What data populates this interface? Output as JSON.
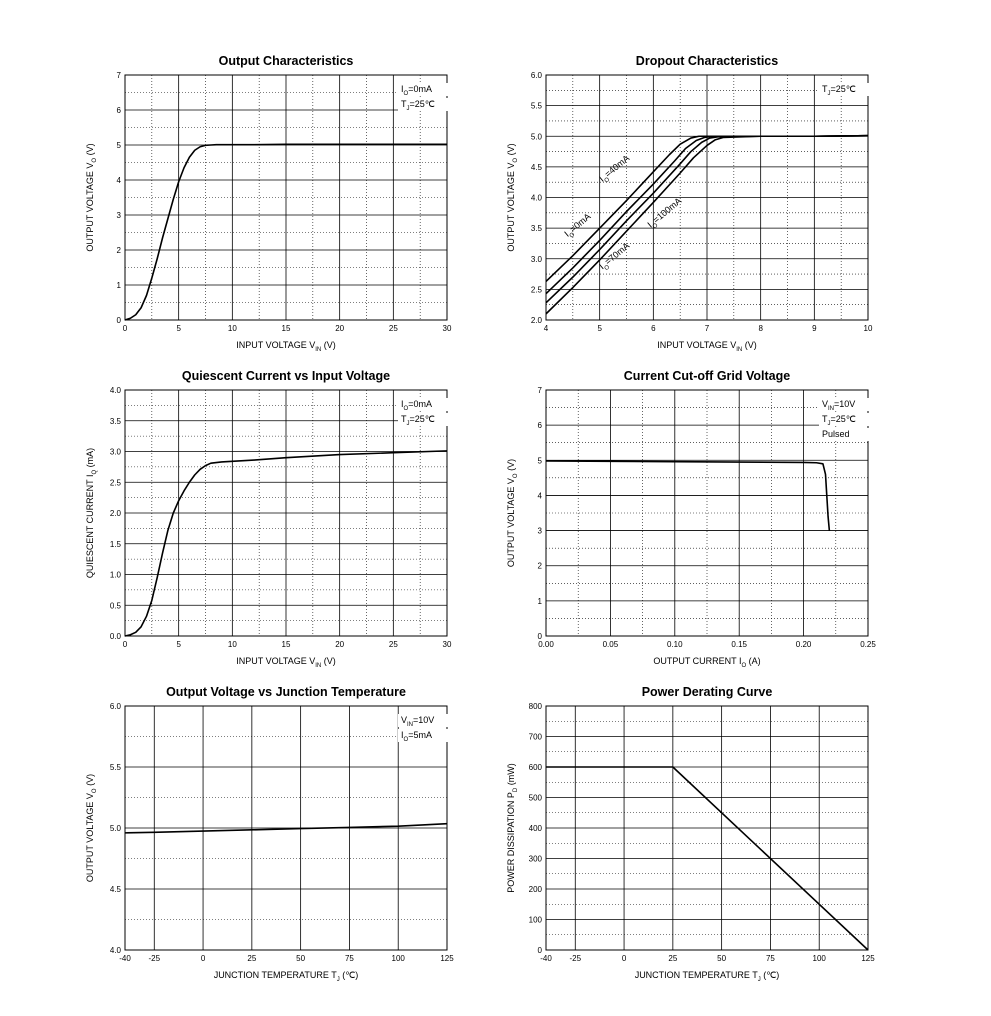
{
  "chart_data": [
    {
      "type": "line",
      "title": "Output  Characteristics",
      "xlabel": {
        "main": "INPUT VOLTAGE   V",
        "sub": "IN",
        "unit": "(V)"
      },
      "ylabel": {
        "main": "OUTPUT VOLTAGE   V",
        "sub": "O",
        "unit": "(V)"
      },
      "xlim": [
        0,
        30
      ],
      "ylim": [
        0,
        7
      ],
      "xticks": [
        0,
        5,
        10,
        15,
        20,
        25,
        30
      ],
      "yticks": [
        0,
        1,
        2,
        3,
        4,
        5,
        6,
        7
      ],
      "ytick_labels": [
        "0",
        "1",
        "2",
        "3",
        "4",
        "5",
        "6",
        "7"
      ],
      "annotations": [
        {
          "main": "I",
          "sub": "O",
          "rest": "=0mA"
        },
        {
          "main": "T",
          "sub": "J",
          "rest": "=25℃"
        }
      ],
      "series": [
        {
          "x": [
            0,
            0.5,
            1,
            1.5,
            2,
            2.5,
            3,
            3.5,
            4,
            4.5,
            5,
            5.5,
            6,
            6.5,
            7,
            7.5,
            8,
            8.5,
            9,
            10,
            12,
            15,
            20,
            25,
            30
          ],
          "y": [
            0,
            0.05,
            0.15,
            0.35,
            0.7,
            1.2,
            1.75,
            2.35,
            2.9,
            3.45,
            3.95,
            4.35,
            4.65,
            4.85,
            4.95,
            4.99,
            5.0,
            5.01,
            5.01,
            5.01,
            5.01,
            5.02,
            5.02,
            5.02,
            5.02
          ]
        }
      ]
    },
    {
      "type": "line",
      "title": "Dropout Characteristics",
      "xlabel": {
        "main": "INPUT VOLTAGE   V",
        "sub": "IN",
        "unit": "(V)"
      },
      "ylabel": {
        "main": "OUTPUT VOLTAGE   V",
        "sub": "O",
        "unit": "(V)"
      },
      "xlim": [
        4,
        10
      ],
      "ylim": [
        2.0,
        6.0
      ],
      "xticks": [
        4,
        5,
        6,
        7,
        8,
        9,
        10
      ],
      "yticks": [
        2.0,
        2.5,
        3.0,
        3.5,
        4.0,
        4.5,
        5.0,
        5.5,
        6.0
      ],
      "ytick_labels": [
        "2.0",
        "2.5",
        "3.0",
        "3.5",
        "4.0",
        "4.5",
        "5.0",
        "5.5",
        "6.0"
      ],
      "annotations": [
        {
          "main": "T",
          "sub": "J",
          "rest": "=25℃"
        }
      ],
      "series": [
        {
          "name": "I=0mA",
          "x": [
            4,
            4.5,
            5,
            5.5,
            6,
            6.3,
            6.5,
            6.7,
            6.85,
            7,
            8,
            9,
            10
          ],
          "y": [
            2.63,
            3.05,
            3.5,
            3.95,
            4.42,
            4.7,
            4.87,
            4.97,
            5.0,
            5.0,
            5.0,
            5.0,
            5.01
          ]
        },
        {
          "name": "I=40mA",
          "x": [
            4,
            4.5,
            5,
            5.5,
            6,
            6.4,
            6.6,
            6.8,
            6.95,
            7.1,
            8,
            9,
            10
          ],
          "y": [
            2.43,
            2.85,
            3.3,
            3.77,
            4.22,
            4.6,
            4.8,
            4.93,
            4.98,
            5.0,
            5.0,
            5.0,
            5.01
          ]
        },
        {
          "name": "I=70mA",
          "x": [
            4,
            4.5,
            5,
            5.5,
            6,
            6.5,
            6.7,
            6.9,
            7.05,
            7.2,
            8,
            9,
            10
          ],
          "y": [
            2.28,
            2.7,
            3.15,
            3.62,
            4.07,
            4.55,
            4.75,
            4.9,
            4.97,
            4.99,
            5.0,
            5.0,
            5.01
          ]
        },
        {
          "name": "I=100mA",
          "x": [
            4,
            4.5,
            5,
            5.5,
            6,
            6.5,
            6.75,
            7,
            7.15,
            7.3,
            8,
            9,
            10
          ],
          "y": [
            2.1,
            2.53,
            2.98,
            3.45,
            3.92,
            4.4,
            4.65,
            4.85,
            4.94,
            4.98,
            5.0,
            5.0,
            5.01
          ]
        }
      ],
      "curve_labels": [
        {
          "main": "I",
          "sub": "O",
          "rest": "=0mA"
        },
        {
          "main": "I",
          "sub": "O",
          "rest": "=40mA"
        },
        {
          "main": "I",
          "sub": "O",
          "rest": "=70mA"
        },
        {
          "main": "I",
          "sub": "O",
          "rest": "=100mA"
        }
      ]
    },
    {
      "type": "line",
      "title": "Quiescent Current vs Input Voltage",
      "xlabel": {
        "main": "INPUT VOLTAGE   V",
        "sub": "IN",
        "unit": "(V)"
      },
      "ylabel": {
        "main": "QUIESCENT CURRENT   I",
        "sub": "Q",
        "unit": "(mA)"
      },
      "xlim": [
        0,
        30
      ],
      "ylim": [
        0,
        4.0
      ],
      "xticks": [
        0,
        5,
        10,
        15,
        20,
        25,
        30
      ],
      "yticks": [
        0,
        0.5,
        1.0,
        1.5,
        2.0,
        2.5,
        3.0,
        3.5,
        4.0
      ],
      "ytick_labels": [
        "0.0",
        "0.5",
        "1.0",
        "1.5",
        "2.0",
        "2.5",
        "3.0",
        "3.5",
        "4.0"
      ],
      "annotations": [
        {
          "main": "I",
          "sub": "O",
          "rest": "=0mA"
        },
        {
          "main": "T",
          "sub": "J",
          "rest": "=25℃"
        }
      ],
      "series": [
        {
          "x": [
            0,
            0.5,
            1,
            1.5,
            2,
            2.5,
            3,
            3.5,
            4,
            4.5,
            5,
            5.5,
            6,
            6.5,
            7,
            7.5,
            8,
            9,
            10,
            12,
            15,
            20,
            25,
            30
          ],
          "y": [
            0,
            0.02,
            0.06,
            0.15,
            0.32,
            0.58,
            0.95,
            1.35,
            1.72,
            2.0,
            2.2,
            2.36,
            2.5,
            2.62,
            2.71,
            2.77,
            2.81,
            2.83,
            2.84,
            2.86,
            2.9,
            2.95,
            2.98,
            3.01
          ]
        }
      ]
    },
    {
      "type": "line",
      "title": "Current  Cut-off Grid Voltage",
      "xlabel": {
        "main": "OUTPUT CURRENT   I",
        "sub": "O",
        "unit": "(A)"
      },
      "ylabel": {
        "main": "OUTPUT VOLTAGE   V",
        "sub": "O",
        "unit": "(V)"
      },
      "xlim": [
        0,
        0.25
      ],
      "ylim": [
        0,
        7
      ],
      "xticks": [
        0,
        0.05,
        0.1,
        0.15,
        0.2,
        0.25
      ],
      "xtick_labels": [
        "0.00",
        "0.05",
        "0.10",
        "0.15",
        "0.20",
        "0.25"
      ],
      "yticks": [
        0,
        1,
        2,
        3,
        4,
        5,
        6,
        7
      ],
      "ytick_labels": [
        "0",
        "1",
        "2",
        "3",
        "4",
        "5",
        "6",
        "7"
      ],
      "annotations": [
        {
          "main": "V",
          "sub": "IN",
          "rest": "=10V"
        },
        {
          "main": "T",
          "sub": "J",
          "rest": "=25℃"
        },
        {
          "main": "Pulsed",
          "sub": "",
          "rest": ""
        }
      ],
      "series": [
        {
          "x": [
            0,
            0.05,
            0.1,
            0.15,
            0.2,
            0.21,
            0.215,
            0.217,
            0.218,
            0.219,
            0.22
          ],
          "y": [
            4.98,
            4.97,
            4.96,
            4.95,
            4.94,
            4.93,
            4.9,
            4.6,
            4.0,
            3.4,
            3.0
          ]
        }
      ]
    },
    {
      "type": "line",
      "title": "Output Voltage vs Junction Temperature",
      "xlabel": {
        "main": "JUNCTION TEMPERATURE   T",
        "sub": "J",
        "unit": "(℃)"
      },
      "ylabel": {
        "main": "OUTPUT VOLTAGE   V",
        "sub": "O",
        "unit": "(V)"
      },
      "xlim": [
        -40,
        125
      ],
      "ylim": [
        4.0,
        6.0
      ],
      "xticks": [
        -40,
        -25,
        0,
        25,
        50,
        75,
        100,
        125
      ],
      "yticks": [
        4.0,
        4.5,
        5.0,
        5.5,
        6.0
      ],
      "ytick_labels": [
        "4.0",
        "4.5",
        "5.0",
        "5.5",
        "6.0"
      ],
      "annotations": [
        {
          "main": "V",
          "sub": "IN",
          "rest": "=10V"
        },
        {
          "main": "I",
          "sub": "O",
          "rest": "=5mA"
        }
      ],
      "series": [
        {
          "x": [
            -40,
            -25,
            0,
            25,
            50,
            75,
            100,
            125
          ],
          "y": [
            4.96,
            4.965,
            4.975,
            4.985,
            4.995,
            5.005,
            5.015,
            5.035
          ]
        }
      ]
    },
    {
      "type": "line",
      "title": "Power Derating Curve",
      "xlabel": {
        "main": "JUNCTION TEMPERATURE   T",
        "sub": "J",
        "unit": "(℃)"
      },
      "ylabel": {
        "main": "POWER DISSIPATION   P",
        "sub": "D",
        "unit": "(mW)"
      },
      "xlim": [
        -40,
        125
      ],
      "ylim": [
        0,
        800
      ],
      "xticks": [
        -40,
        -25,
        0,
        25,
        50,
        75,
        100,
        125
      ],
      "yticks": [
        0,
        100,
        200,
        300,
        400,
        500,
        600,
        700,
        800
      ],
      "ytick_labels": [
        "0",
        "100",
        "200",
        "300",
        "400",
        "500",
        "600",
        "700",
        "800"
      ],
      "annotations": [],
      "series": [
        {
          "x": [
            -40,
            25,
            125
          ],
          "y": [
            600,
            600,
            0
          ]
        }
      ]
    }
  ]
}
